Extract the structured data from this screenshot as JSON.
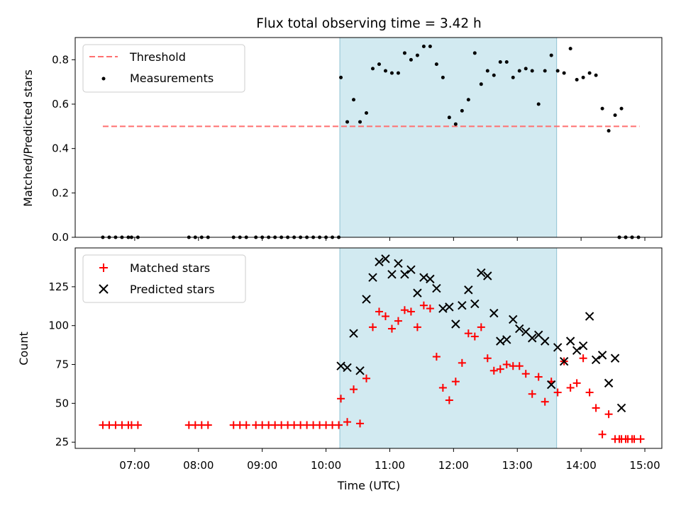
{
  "chart_data": [
    {
      "type": "scatter",
      "title": "Flux total observing time = 3.42 h",
      "xlabel": "",
      "ylabel": "Matched/Predicted stars",
      "xlim": [
        "06:04",
        "15:16"
      ],
      "ylim": [
        0,
        0.9
      ],
      "yticks": [
        "0.0",
        "0.2",
        "0.4",
        "0.6",
        "0.8"
      ],
      "grid": false,
      "legend": "top-left",
      "shaded_span": [
        "10:13",
        "13:37"
      ],
      "shaded_color": "#add8e6",
      "threshold": {
        "name": "Threshold",
        "value": 0.5,
        "x": [
          "06:30",
          "14:55"
        ],
        "color": "#ff7070",
        "style": "dashed"
      },
      "series": [
        {
          "name": "Measurements",
          "marker": "dot",
          "color": "#000000",
          "points": [
            [
              "06:30",
              0
            ],
            [
              "06:36",
              0
            ],
            [
              "06:42",
              0
            ],
            [
              "06:48",
              0
            ],
            [
              "06:54",
              0
            ],
            [
              "06:57",
              0
            ],
            [
              "07:03",
              0
            ],
            [
              "07:51",
              0
            ],
            [
              "07:57",
              0
            ],
            [
              "08:03",
              0
            ],
            [
              "08:09",
              0
            ],
            [
              "08:33",
              0
            ],
            [
              "08:39",
              0
            ],
            [
              "08:45",
              0
            ],
            [
              "08:54",
              0
            ],
            [
              "09:00",
              0
            ],
            [
              "09:06",
              0
            ],
            [
              "09:12",
              0
            ],
            [
              "09:18",
              0
            ],
            [
              "09:24",
              0
            ],
            [
              "09:30",
              0
            ],
            [
              "09:36",
              0
            ],
            [
              "09:42",
              0
            ],
            [
              "09:48",
              0
            ],
            [
              "09:54",
              0
            ],
            [
              "10:00",
              0
            ],
            [
              "10:06",
              0
            ],
            [
              "10:12",
              0
            ],
            [
              "10:14",
              0.72
            ],
            [
              "10:20",
              0.52
            ],
            [
              "10:26",
              0.62
            ],
            [
              "10:32",
              0.52
            ],
            [
              "10:38",
              0.56
            ],
            [
              "10:44",
              0.76
            ],
            [
              "10:50",
              0.78
            ],
            [
              "10:56",
              0.75
            ],
            [
              "11:02",
              0.74
            ],
            [
              "11:08",
              0.74
            ],
            [
              "11:14",
              0.83
            ],
            [
              "11:20",
              0.8
            ],
            [
              "11:26",
              0.82
            ],
            [
              "11:32",
              0.86
            ],
            [
              "11:38",
              0.86
            ],
            [
              "11:44",
              0.78
            ],
            [
              "11:50",
              0.72
            ],
            [
              "11:56",
              0.54
            ],
            [
              "12:02",
              0.51
            ],
            [
              "12:08",
              0.57
            ],
            [
              "12:14",
              0.62
            ],
            [
              "12:20",
              0.83
            ],
            [
              "12:26",
              0.69
            ],
            [
              "12:32",
              0.75
            ],
            [
              "12:38",
              0.73
            ],
            [
              "12:44",
              0.79
            ],
            [
              "12:50",
              0.79
            ],
            [
              "12:56",
              0.72
            ],
            [
              "13:02",
              0.75
            ],
            [
              "13:08",
              0.76
            ],
            [
              "13:14",
              0.75
            ],
            [
              "13:20",
              0.6
            ],
            [
              "13:26",
              0.75
            ],
            [
              "13:32",
              0.82
            ],
            [
              "13:38",
              0.75
            ],
            [
              "13:44",
              0.74
            ],
            [
              "13:50",
              0.85
            ],
            [
              "13:56",
              0.71
            ],
            [
              "14:02",
              0.72
            ],
            [
              "14:08",
              0.74
            ],
            [
              "14:14",
              0.73
            ],
            [
              "14:20",
              0.58
            ],
            [
              "14:26",
              0.48
            ],
            [
              "14:32",
              0.55
            ],
            [
              "14:38",
              0.58
            ],
            [
              "14:36",
              0
            ],
            [
              "14:42",
              0
            ],
            [
              "14:48",
              0
            ],
            [
              "14:54",
              0
            ],
            [
              "14:36",
              0
            ],
            [
              "14:42",
              0
            ],
            [
              "14:48",
              0
            ]
          ]
        }
      ]
    },
    {
      "type": "scatter",
      "title": "",
      "xlabel": "Time (UTC)",
      "ylabel": "Count",
      "xlim": [
        "06:04",
        "15:16"
      ],
      "ylim": [
        21,
        150
      ],
      "yticks": [
        "25",
        "50",
        "75",
        "100",
        "125"
      ],
      "xticks": [
        "07:00",
        "08:00",
        "09:00",
        "10:00",
        "11:00",
        "12:00",
        "13:00",
        "14:00",
        "15:00"
      ],
      "grid": false,
      "legend": "top-left",
      "shaded_span": [
        "10:13",
        "13:37"
      ],
      "series": [
        {
          "name": "Matched stars",
          "marker": "plus",
          "color": "#ff0000",
          "points": [
            [
              "06:30",
              36
            ],
            [
              "06:36",
              36
            ],
            [
              "06:42",
              36
            ],
            [
              "06:48",
              36
            ],
            [
              "06:54",
              36
            ],
            [
              "06:57",
              36
            ],
            [
              "07:03",
              36
            ],
            [
              "07:51",
              36
            ],
            [
              "07:57",
              36
            ],
            [
              "08:03",
              36
            ],
            [
              "08:09",
              36
            ],
            [
              "08:33",
              36
            ],
            [
              "08:39",
              36
            ],
            [
              "08:45",
              36
            ],
            [
              "08:54",
              36
            ],
            [
              "09:00",
              36
            ],
            [
              "09:06",
              36
            ],
            [
              "09:12",
              36
            ],
            [
              "09:18",
              36
            ],
            [
              "09:24",
              36
            ],
            [
              "09:30",
              36
            ],
            [
              "09:36",
              36
            ],
            [
              "09:42",
              36
            ],
            [
              "09:48",
              36
            ],
            [
              "09:54",
              36
            ],
            [
              "10:00",
              36
            ],
            [
              "10:06",
              36
            ],
            [
              "10:12",
              36
            ],
            [
              "10:14",
              53
            ],
            [
              "10:20",
              38
            ],
            [
              "10:26",
              59
            ],
            [
              "10:32",
              37
            ],
            [
              "10:38",
              66
            ],
            [
              "10:44",
              99
            ],
            [
              "10:50",
              109
            ],
            [
              "10:56",
              106
            ],
            [
              "11:02",
              98
            ],
            [
              "11:08",
              103
            ],
            [
              "11:14",
              110
            ],
            [
              "11:20",
              109
            ],
            [
              "11:26",
              99
            ],
            [
              "11:32",
              113
            ],
            [
              "11:38",
              111
            ],
            [
              "11:44",
              80
            ],
            [
              "11:50",
              60
            ],
            [
              "11:56",
              52
            ],
            [
              "12:02",
              64
            ],
            [
              "12:08",
              76
            ],
            [
              "12:14",
              95
            ],
            [
              "12:20",
              93
            ],
            [
              "12:26",
              99
            ],
            [
              "12:32",
              79
            ],
            [
              "12:38",
              71
            ],
            [
              "12:44",
              72
            ],
            [
              "12:50",
              75
            ],
            [
              "12:56",
              74
            ],
            [
              "13:02",
              74
            ],
            [
              "13:08",
              69
            ],
            [
              "13:14",
              56
            ],
            [
              "13:20",
              67
            ],
            [
              "13:26",
              51
            ],
            [
              "13:32",
              64
            ],
            [
              "13:38",
              57
            ],
            [
              "13:44",
              77
            ],
            [
              "13:50",
              60
            ],
            [
              "13:56",
              63
            ],
            [
              "14:02",
              79
            ],
            [
              "14:08",
              57
            ],
            [
              "14:14",
              47
            ],
            [
              "14:20",
              30
            ],
            [
              "14:26",
              43
            ],
            [
              "14:32",
              27
            ],
            [
              "14:38",
              27
            ],
            [
              "14:44",
              27
            ],
            [
              "14:50",
              27
            ],
            [
              "14:56",
              27
            ],
            [
              "14:36",
              27
            ],
            [
              "14:42",
              27
            ],
            [
              "14:48",
              27
            ]
          ]
        },
        {
          "name": "Predicted stars",
          "marker": "x",
          "color": "#000000",
          "points": [
            [
              "10:14",
              74
            ],
            [
              "10:20",
              73
            ],
            [
              "10:26",
              95
            ],
            [
              "10:32",
              71
            ],
            [
              "10:38",
              117
            ],
            [
              "10:44",
              131
            ],
            [
              "10:50",
              141
            ],
            [
              "10:56",
              143
            ],
            [
              "11:02",
              133
            ],
            [
              "11:08",
              140
            ],
            [
              "11:14",
              133
            ],
            [
              "11:20",
              136
            ],
            [
              "11:26",
              121
            ],
            [
              "11:32",
              131
            ],
            [
              "11:38",
              130
            ],
            [
              "11:44",
              124
            ],
            [
              "11:50",
              111
            ],
            [
              "11:56",
              112
            ],
            [
              "12:02",
              101
            ],
            [
              "12:08",
              113
            ],
            [
              "12:14",
              123
            ],
            [
              "12:20",
              114
            ],
            [
              "12:26",
              134
            ],
            [
              "12:32",
              132
            ],
            [
              "12:38",
              108
            ],
            [
              "12:44",
              90
            ],
            [
              "12:50",
              91
            ],
            [
              "12:56",
              104
            ],
            [
              "13:02",
              98
            ],
            [
              "13:08",
              96
            ],
            [
              "13:14",
              92
            ],
            [
              "13:20",
              94
            ],
            [
              "13:26",
              90
            ],
            [
              "13:32",
              62
            ],
            [
              "13:38",
              86
            ],
            [
              "13:44",
              77
            ],
            [
              "13:50",
              90
            ],
            [
              "13:56",
              84
            ],
            [
              "14:02",
              87
            ],
            [
              "14:08",
              106
            ],
            [
              "14:14",
              78
            ],
            [
              "14:20",
              81
            ],
            [
              "14:26",
              63
            ],
            [
              "14:32",
              79
            ],
            [
              "14:38",
              47
            ]
          ]
        }
      ]
    }
  ]
}
